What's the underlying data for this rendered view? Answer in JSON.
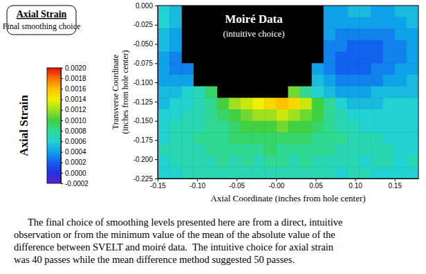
{
  "chart_data": {
    "type": "heatmap",
    "title": "Axial Strain",
    "subtitle": "Final smoothing choice",
    "colorbar_title": "Axial Strain",
    "annotations": [
      "Moiré Data",
      "(intuitive choice)"
    ],
    "xlabel": "Axial Coordinate (inches from hole center)",
    "ylabel": [
      "Transverse Coordinate",
      "(inches from hole center)"
    ],
    "caption": [
      "The final choice of smoothing levels presented here are from a direct, intuitive",
      "observation or from the minimum value of the mean of the absolute value of the",
      "difference between SVELT and moiré data.  The intuitive choice for axial strain",
      "was 40 passes while the mean difference method suggested 50 passes."
    ],
    "xlim": [
      -0.15,
      0.18
    ],
    "xticks": [
      -0.15,
      {
        "value": -0.1,
        "label": "-0.10"
      },
      {
        "value": -0.05,
        "label": "-0.05"
      },
      {
        "value": 0,
        "label": "-0.00"
      },
      0.05,
      {
        "value": 0.1,
        "label": "0.10"
      },
      0.15
    ],
    "ylim": [
      -0.225,
      0
    ],
    "yticks": [
      {
        "value": 0,
        "label": "0.000"
      },
      -0.025,
      {
        "value": -0.05,
        "label": "-0.050"
      },
      -0.075,
      {
        "value": -0.1,
        "label": "-0.100"
      },
      -0.125,
      {
        "value": -0.15,
        "label": "-0.150"
      },
      -0.175,
      {
        "value": -0.2,
        "label": "-0.200"
      },
      -0.225
    ],
    "zlim": [
      -0.0002,
      0.002
    ],
    "zticks": [
      {
        "value": 0.002,
        "label": "0.0020"
      },
      0.0018,
      0.0016,
      0.0014,
      0.0012,
      {
        "value": 0.001,
        "label": "0.0010"
      },
      0.0008,
      0.0006,
      0.0004,
      0.0002,
      {
        "value": 0,
        "label": "0.0000"
      },
      -0.0002
    ],
    "colors": [
      "#5a1fd0",
      "#2232e0",
      "#1262f0",
      "#10a2e8",
      "#22d2d2",
      "#30d894",
      "#40d040",
      "#a0e020",
      "#f0f000",
      "#ffc000",
      "#ff7000",
      "#e01010"
    ],
    "x": [
      -0.1425,
      -0.1275,
      -0.1125,
      -0.0975,
      -0.0825,
      -0.0675,
      -0.0525,
      -0.0375,
      -0.0225,
      -0.0075,
      0.0075,
      0.0225,
      0.0375,
      0.0525,
      0.0675,
      0.0825,
      0.0975,
      0.1125,
      0.1275,
      0.1425,
      0.1575,
      0.1725
    ],
    "y": [
      -0.0075,
      -0.0225,
      -0.0375,
      -0.0525,
      -0.0675,
      -0.0825,
      -0.0975,
      -0.1125,
      -0.1275,
      -0.1425,
      -0.1575,
      -0.1725,
      -0.1875,
      -0.2025,
      -0.2175
    ],
    "z": [
      [
        0.0006,
        0.0005,
        null,
        null,
        null,
        null,
        null,
        null,
        null,
        null,
        null,
        null,
        null,
        null,
        0.0004,
        0.0004,
        0.0005,
        0.0005,
        0.0004,
        0.0004,
        0.0005,
        0.0005
      ],
      [
        0.0006,
        0.0005,
        null,
        null,
        null,
        null,
        null,
        null,
        null,
        null,
        null,
        null,
        null,
        null,
        0.0004,
        0.0004,
        0.0004,
        0.0004,
        0.0004,
        0.0004,
        0.0004,
        0.0005
      ],
      [
        0.0005,
        0.0004,
        null,
        null,
        null,
        null,
        null,
        null,
        null,
        null,
        null,
        null,
        null,
        null,
        0.0004,
        0.0003,
        0.0003,
        0.0003,
        0.0003,
        0.0003,
        0.0004,
        0.0004
      ],
      [
        0.0005,
        0.0004,
        null,
        null,
        null,
        null,
        null,
        null,
        null,
        null,
        null,
        null,
        null,
        null,
        0.0003,
        0.0003,
        0.0002,
        0.0002,
        0.0002,
        0.0003,
        0.0003,
        0.0004
      ],
      [
        0.0004,
        0.0003,
        null,
        null,
        null,
        null,
        null,
        null,
        null,
        null,
        null,
        null,
        null,
        null,
        0.0003,
        0.0002,
        0.0002,
        0.0002,
        0.0002,
        0.0003,
        0.0003,
        0.0004
      ],
      [
        0.0004,
        0.0003,
        0.0003,
        null,
        null,
        null,
        null,
        null,
        null,
        null,
        null,
        null,
        null,
        0.0004,
        0.0003,
        0.0002,
        0.0002,
        0.0002,
        0.0003,
        0.0003,
        0.0004,
        0.0004
      ],
      [
        0.0004,
        0.0004,
        0.0004,
        null,
        null,
        null,
        null,
        null,
        null,
        null,
        null,
        null,
        null,
        0.0005,
        0.0004,
        0.0003,
        0.0003,
        0.0003,
        0.0003,
        0.0004,
        0.0004,
        0.0005
      ],
      [
        0.0005,
        0.0005,
        0.0006,
        0.0007,
        0.0009,
        null,
        null,
        null,
        null,
        null,
        null,
        0.0011,
        0.0008,
        0.0006,
        0.0005,
        0.0004,
        0.0004,
        0.0004,
        0.0005,
        0.0005,
        0.0005,
        0.0005
      ],
      [
        0.0005,
        0.0006,
        0.0006,
        0.0007,
        0.0008,
        0.001,
        0.0012,
        0.0013,
        0.0014,
        0.0015,
        0.0016,
        0.0015,
        0.0013,
        0.001,
        0.0008,
        0.0006,
        0.0005,
        0.0005,
        0.0005,
        0.0006,
        0.0006,
        0.0006
      ],
      [
        0.0006,
        0.0006,
        0.0007,
        0.0007,
        0.0008,
        0.0009,
        0.001,
        0.0011,
        0.0012,
        0.0012,
        0.0013,
        0.0012,
        0.0011,
        0.001,
        0.0008,
        0.0007,
        0.0006,
        0.0006,
        0.0006,
        0.0006,
        0.0006,
        0.0006
      ],
      [
        0.0006,
        0.0007,
        0.0007,
        0.0007,
        0.0008,
        0.0008,
        0.0009,
        0.001,
        0.001,
        0.001,
        0.0011,
        0.001,
        0.001,
        0.0009,
        0.0008,
        0.0007,
        0.0007,
        0.0006,
        0.0006,
        0.0006,
        0.0006,
        0.0006
      ],
      [
        0.0006,
        0.0007,
        0.0007,
        0.0008,
        0.0008,
        0.0008,
        0.0009,
        0.0009,
        0.0009,
        0.0009,
        0.0009,
        0.0009,
        0.0009,
        0.0008,
        0.0008,
        0.0008,
        0.0007,
        0.0007,
        0.0007,
        0.0006,
        0.0006,
        0.0006
      ],
      [
        0.0007,
        0.0007,
        0.0007,
        0.0007,
        0.0008,
        0.0008,
        0.0008,
        0.0008,
        0.0008,
        0.0009,
        0.0008,
        0.0008,
        0.0008,
        0.0008,
        0.0008,
        0.0007,
        0.0007,
        0.0007,
        0.0007,
        0.0007,
        0.0006,
        0.0006
      ],
      [
        0.0006,
        0.0007,
        0.0007,
        0.0007,
        0.0007,
        0.0008,
        0.0007,
        0.0008,
        0.0007,
        0.0008,
        0.0008,
        0.0007,
        0.0008,
        0.0007,
        0.0007,
        0.0007,
        0.0007,
        0.0006,
        0.0007,
        0.0007,
        0.0006,
        0.0007
      ],
      [
        0.0006,
        0.0006,
        0.0007,
        0.0007,
        0.0007,
        0.0007,
        0.0007,
        0.0007,
        0.0007,
        0.0007,
        0.0007,
        0.0007,
        0.0007,
        0.0007,
        0.0007,
        0.0006,
        0.0007,
        0.0007,
        0.0006,
        0.0006,
        0.0006,
        0.0006
      ]
    ]
  }
}
